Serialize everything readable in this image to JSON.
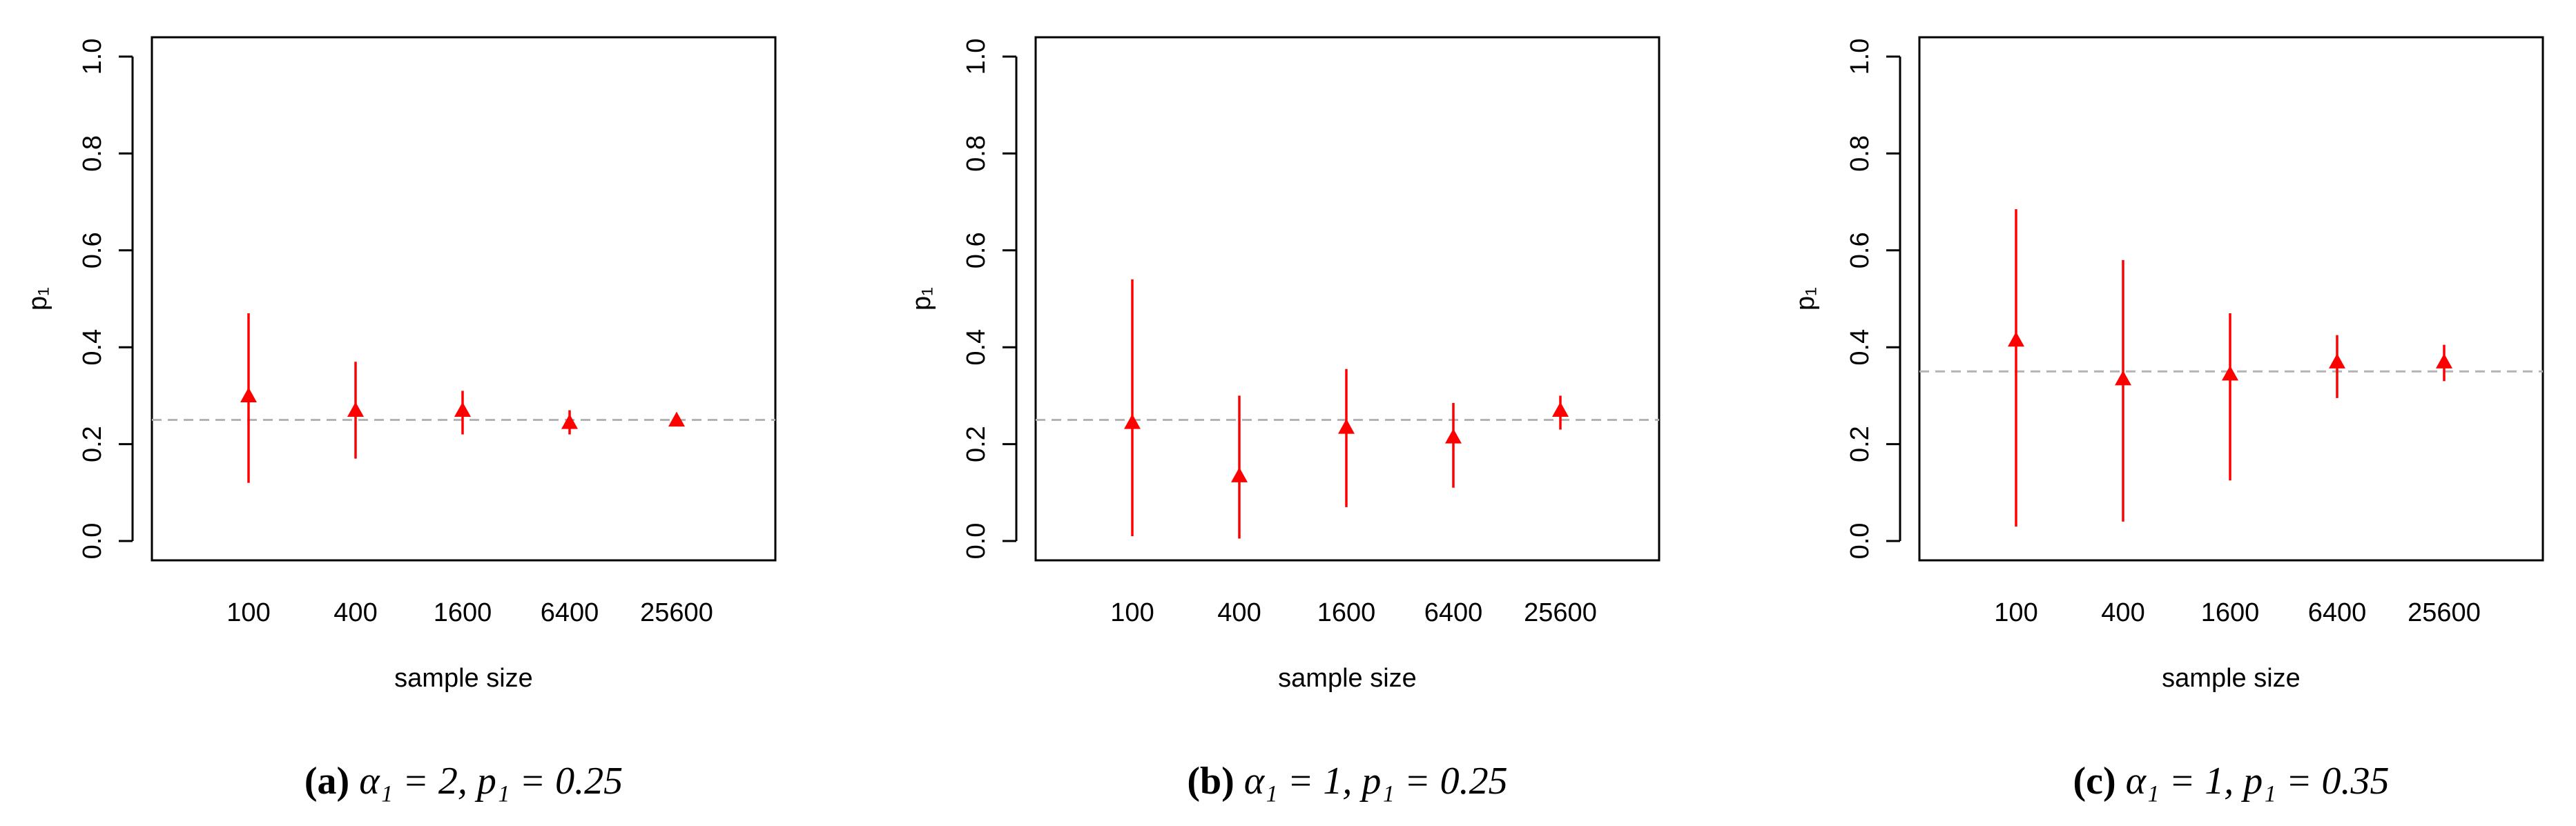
{
  "colors": {
    "point": "#ff0000",
    "reference_line": "#b3b3b3",
    "axis": "#000000",
    "background": "#ffffff"
  },
  "chart_data": [
    {
      "type": "scatter",
      "panel": "a",
      "caption": {
        "tag": "(a)",
        "text": "α₁ = 2, p₁ = 0.25"
      },
      "xlabel": "sample size",
      "ylabel": "p₁",
      "categories": [
        "100",
        "400",
        "1600",
        "6400",
        "25600"
      ],
      "yticks": [
        "0.0",
        "0.2",
        "0.4",
        "0.6",
        "0.8",
        "1.0"
      ],
      "ylim": [
        0,
        1
      ],
      "reference": 0.25,
      "values": [
        0.3,
        0.27,
        0.27,
        0.245,
        0.25
      ],
      "lower": [
        0.12,
        0.17,
        0.22,
        0.22,
        0.24
      ],
      "upper": [
        0.47,
        0.37,
        0.31,
        0.27,
        0.26
      ],
      "marker": "triangle",
      "grid": false
    },
    {
      "type": "scatter",
      "panel": "b",
      "caption": {
        "tag": "(b)",
        "text": "α₁ = 1, p₁ = 0.25"
      },
      "xlabel": "sample size",
      "ylabel": "p₁",
      "categories": [
        "100",
        "400",
        "1600",
        "6400",
        "25600"
      ],
      "yticks": [
        "0.0",
        "0.2",
        "0.4",
        "0.6",
        "0.8",
        "1.0"
      ],
      "ylim": [
        0,
        1
      ],
      "reference": 0.25,
      "values": [
        0.245,
        0.135,
        0.235,
        0.215,
        0.27
      ],
      "lower": [
        0.01,
        0.005,
        0.07,
        0.11,
        0.23
      ],
      "upper": [
        0.54,
        0.3,
        0.355,
        0.285,
        0.3
      ],
      "marker": "triangle",
      "grid": false
    },
    {
      "type": "scatter",
      "panel": "c",
      "caption": {
        "tag": "(c)",
        "text": "α₁ = 1, p₁ = 0.35"
      },
      "xlabel": "sample size",
      "ylabel": "p₁",
      "categories": [
        "100",
        "400",
        "1600",
        "6400",
        "25600"
      ],
      "yticks": [
        "0.0",
        "0.2",
        "0.4",
        "0.6",
        "0.8",
        "1.0"
      ],
      "ylim": [
        0,
        1
      ],
      "reference": 0.35,
      "values": [
        0.415,
        0.335,
        0.345,
        0.37,
        0.37
      ],
      "lower": [
        0.03,
        0.04,
        0.125,
        0.295,
        0.33
      ],
      "upper": [
        0.685,
        0.58,
        0.47,
        0.425,
        0.405
      ],
      "marker": "triangle",
      "grid": false
    }
  ]
}
